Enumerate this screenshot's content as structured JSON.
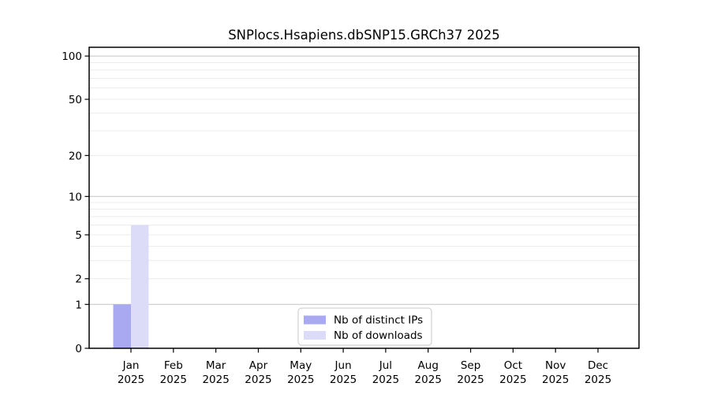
{
  "chart_data": {
    "type": "bar",
    "title": "SNPlocs.Hsapiens.dbSNP15.GRCh37 2025",
    "categories": [
      "Jan",
      "Feb",
      "Mar",
      "Apr",
      "May",
      "Jun",
      "Jul",
      "Aug",
      "Sep",
      "Oct",
      "Nov",
      "Dec"
    ],
    "year_label": "2025",
    "series": [
      {
        "name": "Nb of distinct IPs",
        "color": "#a9a9f2",
        "values": [
          1,
          0,
          0,
          0,
          0,
          0,
          0,
          0,
          0,
          0,
          0,
          0
        ]
      },
      {
        "name": "Nb of downloads",
        "color": "#dcdcf8",
        "values": [
          6,
          0,
          0,
          0,
          0,
          0,
          0,
          0,
          0,
          0,
          0,
          0
        ]
      }
    ],
    "xlabel": "",
    "ylabel": "",
    "scale": "log1p",
    "ylim": [
      0,
      115
    ],
    "yticks": [
      0,
      1,
      2,
      5,
      10,
      20,
      50,
      100
    ],
    "gridlines_minor": [
      2,
      3,
      4,
      5,
      6,
      7,
      8,
      9,
      20,
      30,
      40,
      50,
      60,
      70,
      80,
      90
    ],
    "gridlines_major": [
      1,
      10,
      100
    ],
    "grid": true,
    "legend_position": "bottom-center",
    "colors": {
      "background": "#ffffff",
      "spine": "#000000",
      "major_grid": "#c3c3c3",
      "minor_grid": "#ececec",
      "legend_border": "#c8c8c8",
      "legend_background": "#ffffff",
      "text": "#000000"
    }
  }
}
